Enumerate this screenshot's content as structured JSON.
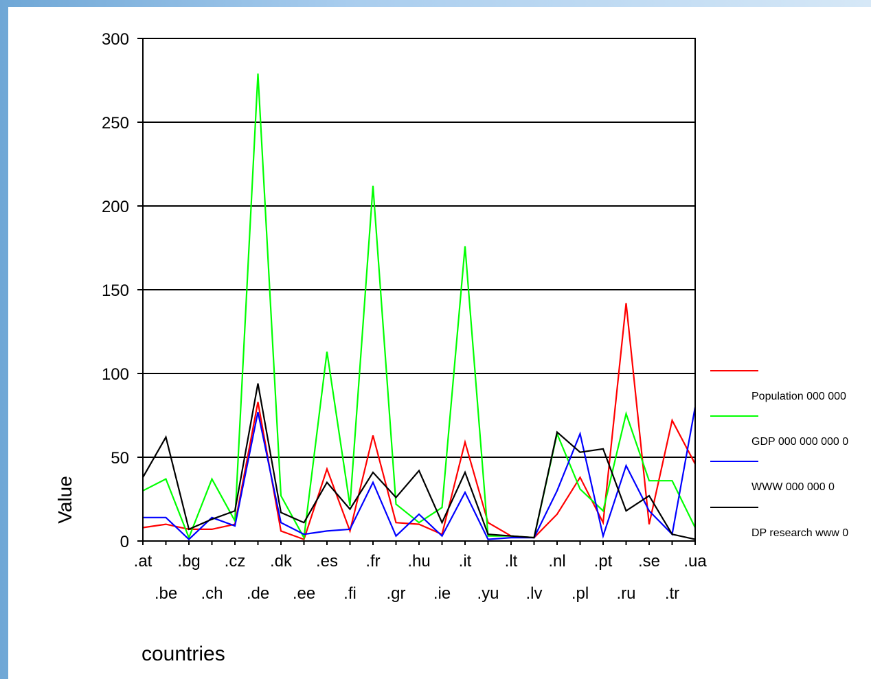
{
  "chart_data": {
    "type": "line",
    "title": "",
    "xlabel": "countries",
    "ylabel": "Value",
    "ylim": [
      0,
      300
    ],
    "yticks": [
      0,
      50,
      100,
      150,
      200,
      250,
      300
    ],
    "grid": true,
    "legend_position": "right",
    "categories": [
      ".at",
      ".be",
      ".bg",
      ".ch",
      ".cz",
      ".de",
      ".dk",
      ".ee",
      ".es",
      ".fi",
      ".fr",
      ".gr",
      ".hu",
      ".ie",
      ".it",
      ".yu",
      ".lt",
      ".lv",
      ".nl",
      ".pl",
      ".pt",
      ".ru",
      ".se",
      ".tr",
      ".ua"
    ],
    "series": [
      {
        "name": "Population 000 000",
        "color": "#ff0000",
        "values": [
          8,
          10,
          7,
          7,
          10,
          83,
          6,
          1,
          43,
          6,
          63,
          11,
          10,
          4,
          59,
          11,
          3,
          2,
          16,
          38,
          11,
          142,
          10,
          72,
          46
        ]
      },
      {
        "name": "GDP 000 000 000 0",
        "color": "#00ff00",
        "values": [
          30,
          37,
          2,
          37,
          12,
          279,
          27,
          2,
          113,
          21,
          212,
          22,
          11,
          20,
          176,
          3,
          3,
          2,
          64,
          31,
          18,
          76,
          36,
          36,
          8
        ]
      },
      {
        "name": "WWW 000 000 0",
        "color": "#0000ff",
        "values": [
          14,
          14,
          1,
          14,
          9,
          77,
          11,
          4,
          6,
          7,
          35,
          3,
          16,
          3,
          29,
          1,
          2,
          2,
          30,
          64,
          3,
          45,
          18,
          4,
          80
        ]
      },
      {
        "name": "DP research www 0",
        "color": "#000000",
        "values": [
          38,
          62,
          7,
          13,
          18,
          94,
          17,
          11,
          35,
          19,
          41,
          26,
          42,
          11,
          41,
          4,
          3,
          2,
          65,
          53,
          55,
          18,
          27,
          4,
          1
        ]
      }
    ]
  }
}
